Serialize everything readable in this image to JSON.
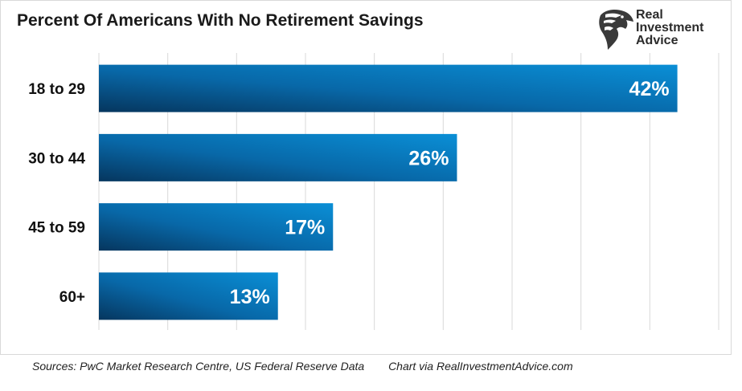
{
  "chart_data": {
    "type": "bar",
    "orientation": "horizontal",
    "title": "Percent Of Americans With No Retirement Savings",
    "categories": [
      "18 to 29",
      "30 to 44",
      "45 to 59",
      "60+"
    ],
    "values": [
      42,
      26,
      17,
      13
    ],
    "data_labels": [
      "42%",
      "26%",
      "17%",
      "13%"
    ],
    "value_unit": "%",
    "xlim": [
      0,
      45
    ],
    "grid": "vertical",
    "colors": {
      "bar_light": "#0a86cc",
      "bar_dark": "#06365e",
      "grid": "#d9d9d9"
    }
  },
  "brand": {
    "logo_lines": [
      "Real",
      "Investment",
      "Advice"
    ],
    "icon": "eagle-head-icon"
  },
  "footer": {
    "sources": "Sources: PwC Market Research Centre, US Federal Reserve Data",
    "credit": "Chart via RealInvestmentAdvice.com"
  }
}
